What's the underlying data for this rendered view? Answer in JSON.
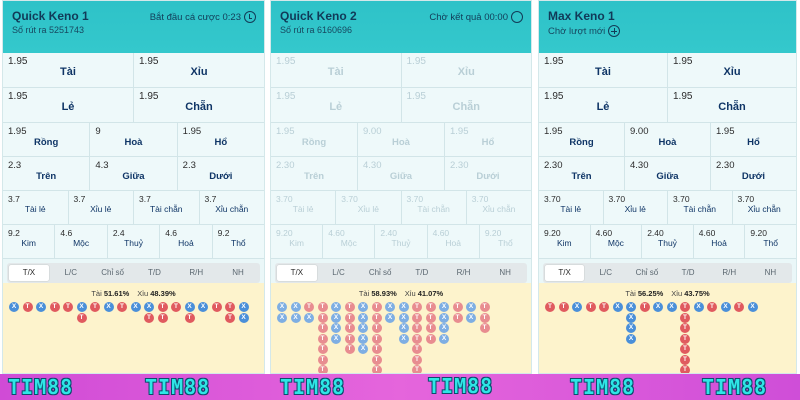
{
  "panels": [
    {
      "name": "Quick Keno 1",
      "draw": "Số rút ra 5251743",
      "status": "Bắt đầu cá cược 0:23",
      "status_icon": "alarm-clock-icon",
      "dim": false,
      "row_big": [
        [
          {
            "odd": "1.95",
            "label": "Tài"
          },
          {
            "odd": "1.95",
            "label": "Xỉu"
          }
        ],
        [
          {
            "odd": "1.95",
            "label": "Lẻ"
          },
          {
            "odd": "1.95",
            "label": "Chẵn"
          }
        ]
      ],
      "row_three": [
        [
          {
            "odd": "1.95",
            "label": "Rồng"
          },
          {
            "odd": "9",
            "label": "Hoà"
          },
          {
            "odd": "1.95",
            "label": "Hổ"
          }
        ],
        [
          {
            "odd": "2.3",
            "label": "Trên"
          },
          {
            "odd": "4.3",
            "label": "Giữa"
          },
          {
            "odd": "2.3",
            "label": "Dưới"
          }
        ]
      ],
      "row_four": [
        {
          "odd": "3.7",
          "label": "Tài lẻ"
        },
        {
          "odd": "3.7",
          "label": "Xỉu lẻ"
        },
        {
          "odd": "3.7",
          "label": "Tài chẵn"
        },
        {
          "odd": "3.7",
          "label": "Xỉu chẵn"
        }
      ],
      "row_five": [
        {
          "odd": "9.2",
          "label": "Kim"
        },
        {
          "odd": "4.6",
          "label": "Mộc"
        },
        {
          "odd": "2.4",
          "label": "Thuỷ"
        },
        {
          "odd": "4.6",
          "label": "Hoả"
        },
        {
          "odd": "9.2",
          "label": "Thổ"
        }
      ],
      "tabs": [
        "T/X",
        "L/C",
        "Chỉ số",
        "T/D",
        "R/H",
        "NH"
      ],
      "active_tab": 0,
      "tai_label": "Tài",
      "tai_pct": "51.61%",
      "xiu_label": "Xỉu",
      "xiu_pct": "48.39%",
      "beads": [
        "X",
        "T",
        "X",
        "T",
        "T",
        "XT",
        "T",
        "X",
        "T",
        "X",
        "XT",
        "TT",
        "T",
        "XT",
        "X",
        "T",
        "TT",
        "XX"
      ]
    },
    {
      "name": "Quick Keno 2",
      "draw": "Số rút ra 6160696",
      "status": "Chờ kết quả 00:00",
      "status_icon": "loading-circle-icon",
      "dim": true,
      "row_big": [
        [
          {
            "odd": "1.95",
            "label": "Tài"
          },
          {
            "odd": "1.95",
            "label": "Xỉu"
          }
        ],
        [
          {
            "odd": "1.95",
            "label": "Lẻ"
          },
          {
            "odd": "1.95",
            "label": "Chẵn"
          }
        ]
      ],
      "row_three": [
        [
          {
            "odd": "1.95",
            "label": "Rồng"
          },
          {
            "odd": "9.00",
            "label": "Hoà"
          },
          {
            "odd": "1.95",
            "label": "Hổ"
          }
        ],
        [
          {
            "odd": "2.30",
            "label": "Trên"
          },
          {
            "odd": "4.30",
            "label": "Giữa"
          },
          {
            "odd": "2.30",
            "label": "Dưới"
          }
        ]
      ],
      "row_four": [
        {
          "odd": "3.70",
          "label": "Tài lẻ"
        },
        {
          "odd": "3.70",
          "label": "Xỉu lẻ"
        },
        {
          "odd": "3.70",
          "label": "Tài chẵn"
        },
        {
          "odd": "3.70",
          "label": "Xỉu chẵn"
        }
      ],
      "row_five": [
        {
          "odd": "9.20",
          "label": "Kim"
        },
        {
          "odd": "4.60",
          "label": "Mộc"
        },
        {
          "odd": "2.40",
          "label": "Thuỷ"
        },
        {
          "odd": "4.60",
          "label": "Hoả"
        },
        {
          "odd": "9.20",
          "label": "Thổ"
        }
      ],
      "tabs": [
        "T/X",
        "L/C",
        "Chỉ số",
        "T/D",
        "R/H",
        "NH"
      ],
      "active_tab": 0,
      "tai_label": "Tài",
      "tai_pct": "58.93%",
      "xiu_label": "Xỉu",
      "xiu_pct": "41.07%",
      "beads": [
        "XX",
        "XX",
        "TX",
        "TTTTTTT",
        "XXXX",
        "TTTTT",
        "XXXXX",
        "TTTTTTT",
        "XX",
        "XXXX",
        "TTTTTTT",
        "TTTT",
        "XXXX",
        "TT",
        "XX",
        "TTT"
      ]
    },
    {
      "name": "Max Keno 1",
      "draw": "",
      "status": "Chờ lượt mới",
      "status_icon": "plus-circle-icon",
      "dim": false,
      "row_big": [
        [
          {
            "odd": "1.95",
            "label": "Tài"
          },
          {
            "odd": "1.95",
            "label": "Xỉu"
          }
        ],
        [
          {
            "odd": "1.95",
            "label": "Lẻ"
          },
          {
            "odd": "1.95",
            "label": "Chẵn"
          }
        ]
      ],
      "row_three": [
        [
          {
            "odd": "1.95",
            "label": "Rồng"
          },
          {
            "odd": "9.00",
            "label": "Hoà"
          },
          {
            "odd": "1.95",
            "label": "Hổ"
          }
        ],
        [
          {
            "odd": "2.30",
            "label": "Trên"
          },
          {
            "odd": "4.30",
            "label": "Giữa"
          },
          {
            "odd": "2.30",
            "label": "Dưới"
          }
        ]
      ],
      "row_four": [
        {
          "odd": "3.70",
          "label": "Tài lẻ"
        },
        {
          "odd": "3.70",
          "label": "Xỉu lẻ"
        },
        {
          "odd": "3.70",
          "label": "Tài chẵn"
        },
        {
          "odd": "3.70",
          "label": "Xỉu chẵn"
        }
      ],
      "row_five": [
        {
          "odd": "9.20",
          "label": "Kim"
        },
        {
          "odd": "4.60",
          "label": "Mộc"
        },
        {
          "odd": "2.40",
          "label": "Thuỷ"
        },
        {
          "odd": "4.60",
          "label": "Hoả"
        },
        {
          "odd": "9.20",
          "label": "Thổ"
        }
      ],
      "tabs": [
        "T/X",
        "L/C",
        "Chỉ số",
        "T/D",
        "R/H",
        "NH"
      ],
      "active_tab": 0,
      "tai_label": "Tài",
      "tai_pct": "56.25%",
      "xiu_label": "Xỉu",
      "xiu_pct": "43.75%",
      "beads": [
        "T",
        "T",
        "X",
        "T",
        "T",
        "X",
        "XXXX",
        "T",
        "X",
        "X",
        "TTTTTTT",
        "X",
        "T",
        "X",
        "T",
        "X"
      ]
    }
  ],
  "footer": {
    "brand": "TIM88",
    "colors": {
      "bg": "#d04bd6",
      "text": "#2ee6e6",
      "outline": "#0b4d6d"
    }
  },
  "colors": {
    "header": "#2fc4c9",
    "bead_tai": "#e05a5f",
    "bead_xiu": "#4a8fd9",
    "road_bg": "#fdf3cc"
  }
}
